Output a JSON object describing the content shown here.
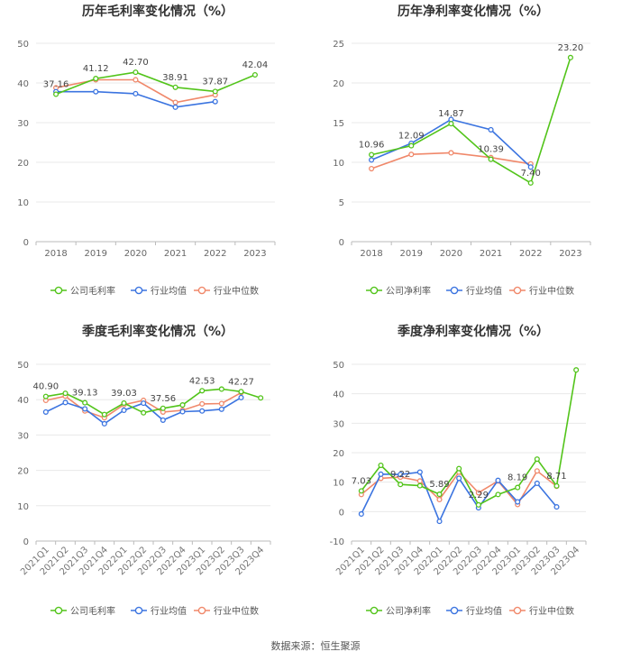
{
  "colors": {
    "company": "#52c41a",
    "avg": "#3b74e0",
    "median": "#f0886a",
    "axis": "#999999",
    "grid": "#e8e8e8"
  },
  "legend_labels": {
    "gross": [
      "公司毛利率",
      "行业均值",
      "行业中位数"
    ],
    "net": [
      "公司净利率",
      "行业均值",
      "行业中位数"
    ]
  },
  "source_text": "数据来源：恒生聚源",
  "chart_data": [
    {
      "type": "line",
      "title": "历年毛利率变化情况（%）",
      "categories": [
        "2018",
        "2019",
        "2020",
        "2021",
        "2022",
        "2023"
      ],
      "ylim": [
        0,
        50
      ],
      "yticks": [
        0,
        10,
        20,
        30,
        40,
        50
      ],
      "rotate_labels": false,
      "legend_key": "gross",
      "series": [
        {
          "name": "公司毛利率",
          "values": [
            37.16,
            41.12,
            42.7,
            38.91,
            37.87,
            42.04
          ]
        },
        {
          "name": "行业均值",
          "values": [
            37.8,
            37.8,
            37.3,
            33.9,
            35.3,
            null
          ]
        },
        {
          "name": "行业中位数",
          "values": [
            38.8,
            40.8,
            40.8,
            35.1,
            37.0,
            null
          ]
        }
      ],
      "data_labels": [
        "37.16",
        "41.12",
        "42.70",
        "38.91",
        "37.87",
        "42.04"
      ]
    },
    {
      "type": "line",
      "title": "历年净利率变化情况（%）",
      "categories": [
        "2018",
        "2019",
        "2020",
        "2021",
        "2022",
        "2023"
      ],
      "ylim": [
        0,
        25
      ],
      "yticks": [
        0,
        5,
        10,
        15,
        20,
        25
      ],
      "rotate_labels": false,
      "legend_key": "net",
      "series": [
        {
          "name": "公司净利率",
          "values": [
            10.96,
            12.09,
            14.87,
            10.39,
            7.4,
            23.2
          ]
        },
        {
          "name": "行业均值",
          "values": [
            10.3,
            12.4,
            15.4,
            14.1,
            9.4,
            null
          ]
        },
        {
          "name": "行业中位数",
          "values": [
            9.2,
            11.0,
            11.2,
            10.6,
            9.8,
            null
          ]
        }
      ],
      "data_labels": [
        "10.96",
        "12.09",
        "14.87",
        "10.39",
        "7.40",
        "23.20"
      ]
    },
    {
      "type": "line",
      "title": "季度毛利率变化情况（%）",
      "categories": [
        "2021Q1",
        "2021Q2",
        "2021Q3",
        "2021Q4",
        "2022Q1",
        "2022Q2",
        "2022Q3",
        "2022Q4",
        "2023Q1",
        "2023Q2",
        "2023Q3",
        "2023Q4"
      ],
      "ylim": [
        0,
        50
      ],
      "yticks": [
        0,
        10,
        20,
        30,
        40,
        50
      ],
      "rotate_labels": true,
      "legend_key": "gross",
      "series": [
        {
          "name": "公司毛利率",
          "values": [
            40.9,
            41.8,
            39.13,
            35.8,
            39.03,
            36.3,
            37.56,
            38.5,
            42.53,
            43.0,
            42.27,
            40.5
          ]
        },
        {
          "name": "行业均值",
          "values": [
            36.5,
            39.2,
            37.4,
            33.2,
            37.0,
            39.0,
            34.2,
            36.6,
            36.8,
            37.3,
            40.6,
            null
          ]
        },
        {
          "name": "行业中位数",
          "values": [
            39.8,
            41.0,
            36.8,
            34.9,
            38.6,
            39.8,
            36.5,
            37.0,
            38.8,
            38.9,
            42.0,
            null
          ]
        }
      ],
      "data_labels": [
        "40.90",
        "",
        "39.13",
        "",
        "39.03",
        "",
        "37.56",
        "",
        "42.53",
        "",
        "42.27",
        ""
      ]
    },
    {
      "type": "line",
      "title": "季度净利率变化情况（%）",
      "categories": [
        "2021Q1",
        "2021Q2",
        "2021Q3",
        "2021Q4",
        "2022Q1",
        "2022Q2",
        "2022Q3",
        "2022Q4",
        "2023Q1",
        "2023Q2",
        "2023Q3",
        "2023Q4"
      ],
      "ylim": [
        -10,
        50
      ],
      "yticks": [
        -10,
        0,
        10,
        20,
        30,
        40,
        50
      ],
      "rotate_labels": true,
      "legend_key": "net",
      "series": [
        {
          "name": "公司净利率",
          "values": [
            7.03,
            15.7,
            9.22,
            8.8,
            5.89,
            14.6,
            2.29,
            5.8,
            8.19,
            17.8,
            8.71,
            48.1
          ]
        },
        {
          "name": "行业均值",
          "values": [
            -0.8,
            12.7,
            12.6,
            13.4,
            -3.3,
            11.3,
            1.3,
            10.6,
            3.3,
            9.6,
            1.6,
            null
          ]
        },
        {
          "name": "行业中位数",
          "values": [
            5.8,
            11.3,
            11.7,
            10.4,
            4.1,
            13.4,
            6.4,
            10.4,
            2.4,
            13.8,
            8.6,
            null
          ]
        }
      ],
      "data_labels": [
        "7.03",
        "",
        "9.22",
        "",
        "5.89",
        "",
        "2.29",
        "",
        "8.19",
        "",
        "8.71",
        ""
      ]
    }
  ]
}
